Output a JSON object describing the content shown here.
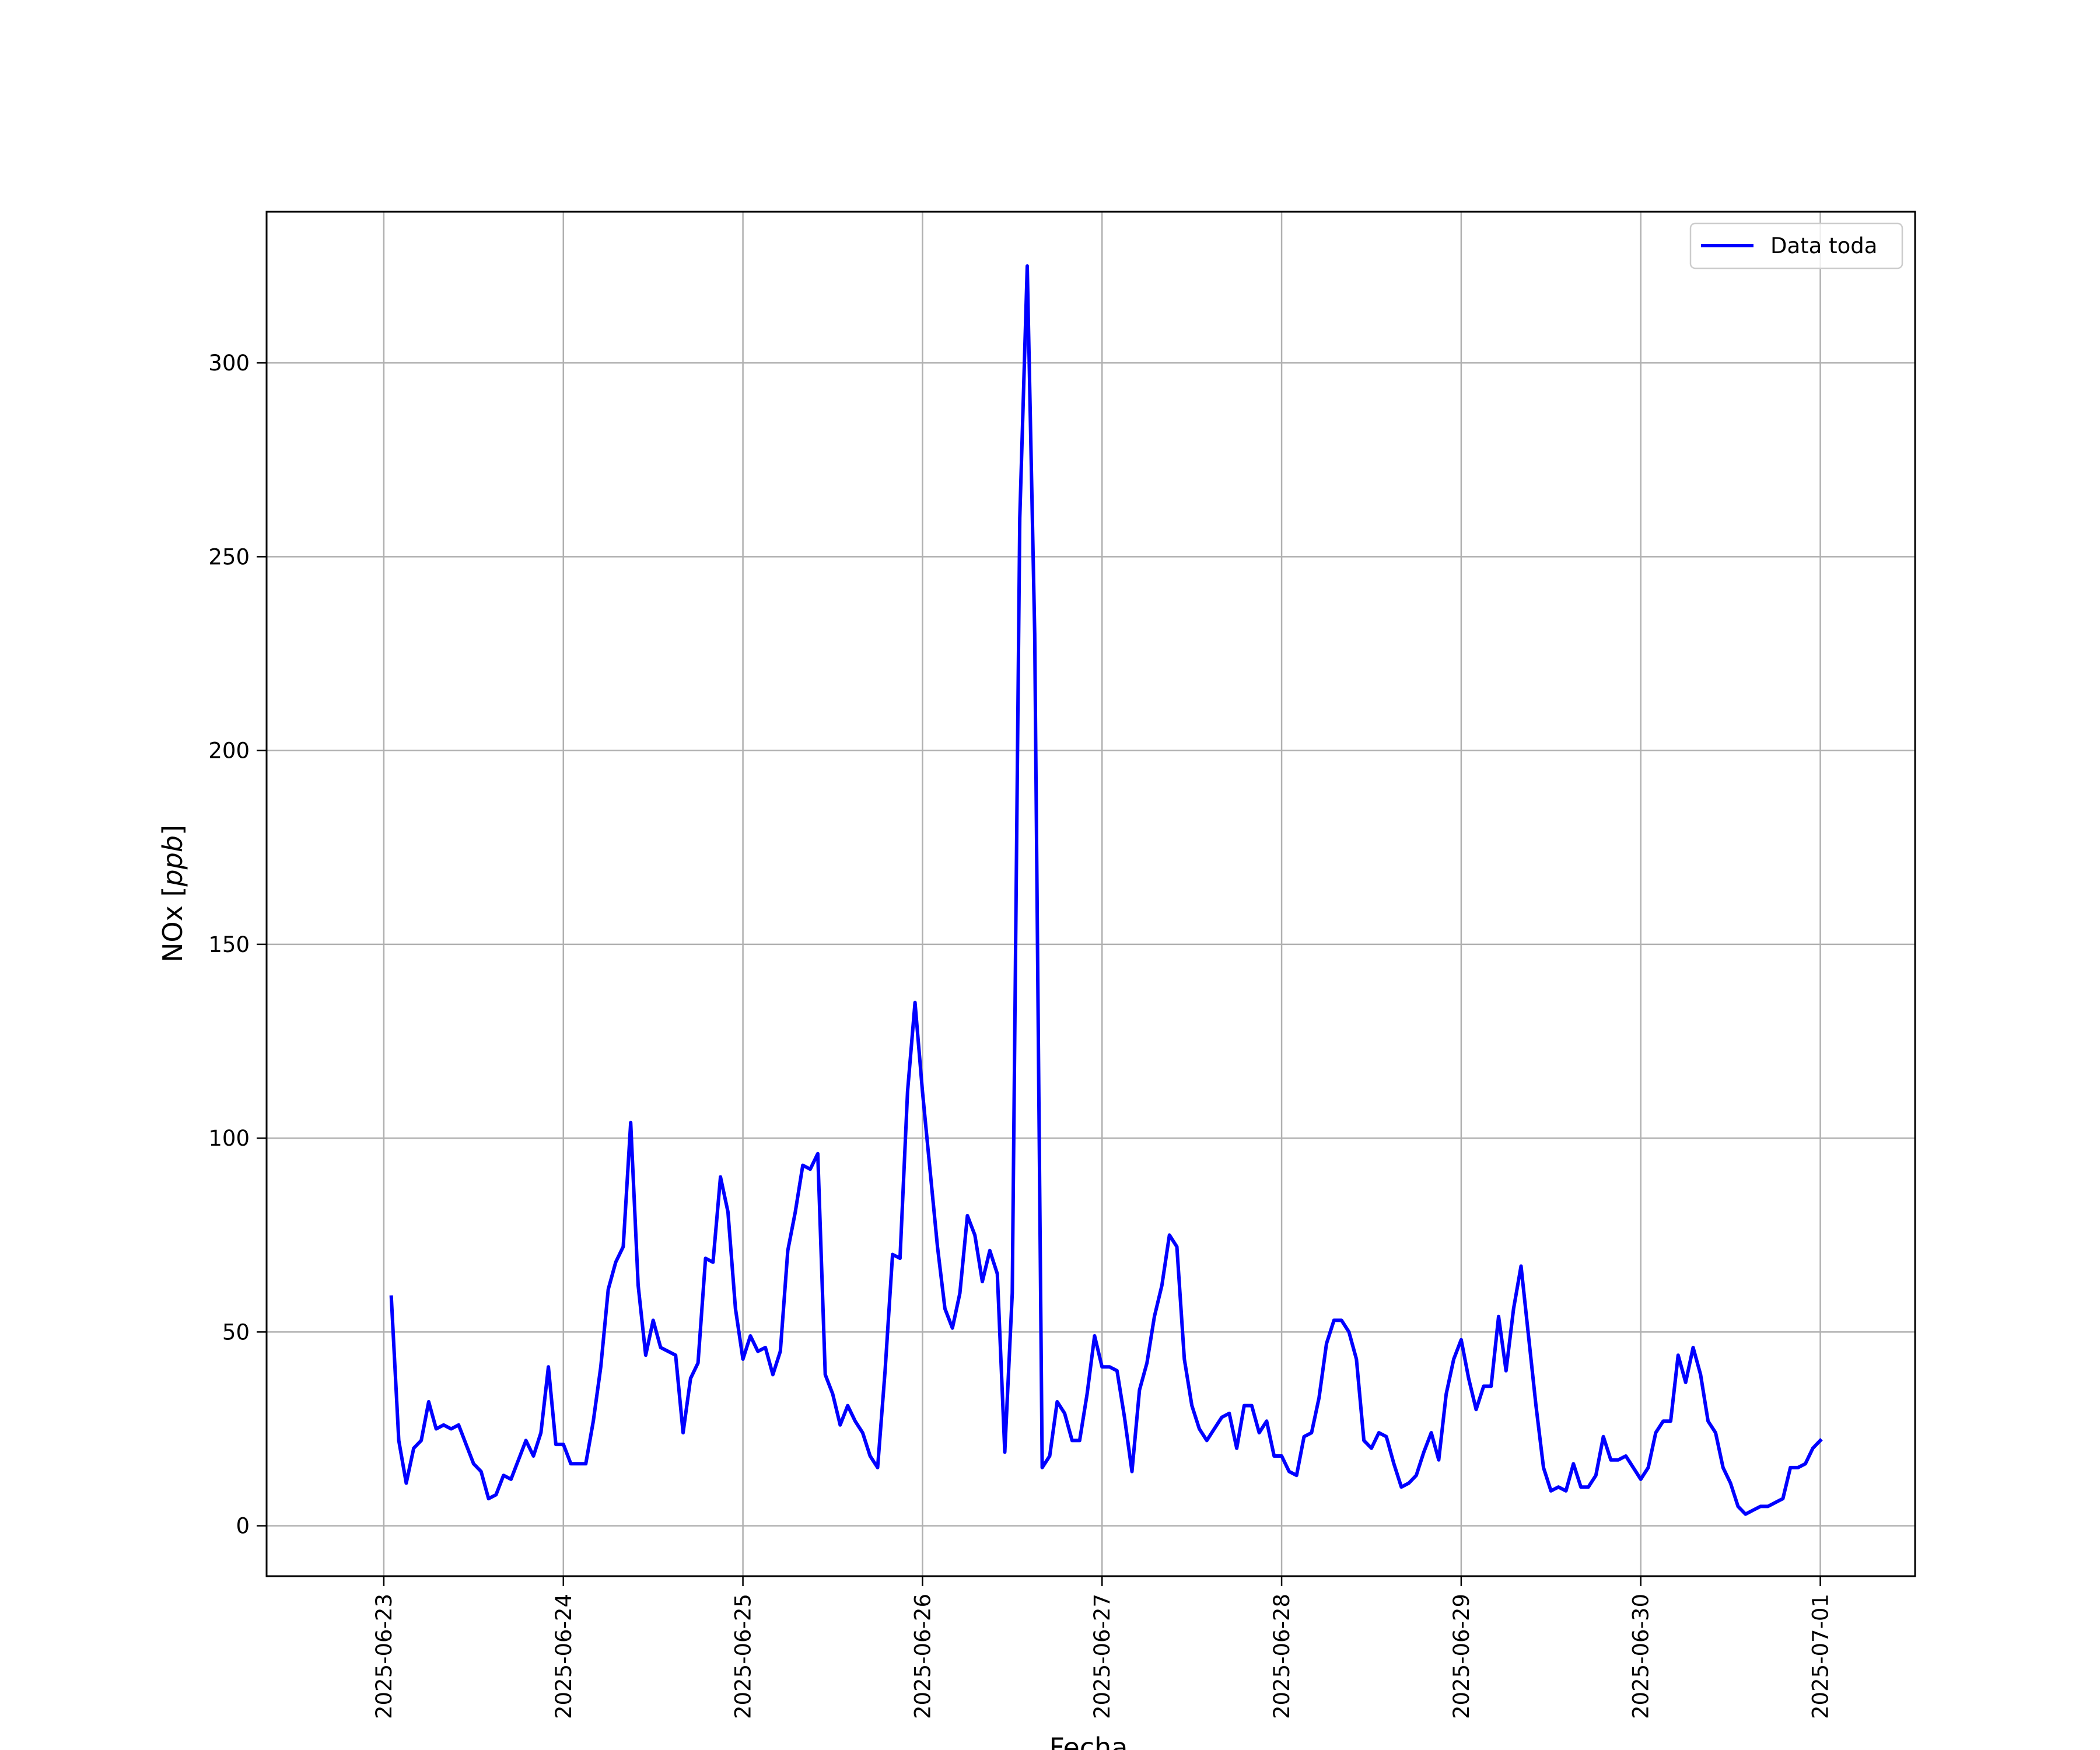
{
  "chart_data": {
    "type": "line",
    "xlabel": "Fecha",
    "ylabel": "NOx",
    "ylabel_unit": "ppb",
    "x_start": "2025-06-23T00:00",
    "x_step_hours": 1,
    "x_ticks": [
      "2025-06-23",
      "2025-06-24",
      "2025-06-25",
      "2025-06-26",
      "2025-06-27",
      "2025-06-28",
      "2025-06-29",
      "2025-06-30",
      "2025-07-01"
    ],
    "y_ticks": [
      0,
      50,
      100,
      150,
      200,
      250,
      300
    ],
    "xlim": [
      "2025-06-22T08:20",
      "2025-07-01T12:40"
    ],
    "ylim": [
      -13,
      339
    ],
    "grid": true,
    "legend_position": "upper right",
    "series_color": "#0000ff",
    "series": [
      {
        "name": "Data toda",
        "start": "2025-06-23T01:00",
        "values": [
          59,
          22,
          11,
          20,
          22,
          32,
          25,
          26,
          25,
          26,
          21,
          16,
          14,
          7,
          8,
          13,
          12,
          17,
          22,
          18,
          24,
          41,
          21,
          21,
          16,
          16,
          16,
          27,
          41,
          61,
          68,
          72,
          104,
          62,
          44,
          53,
          46,
          45,
          44,
          24,
          38,
          42,
          69,
          68,
          90,
          81,
          56,
          43,
          49,
          45,
          46,
          39,
          45,
          71,
          81,
          93,
          92,
          96,
          39,
          34,
          26,
          31,
          27,
          24,
          18,
          15,
          40,
          70,
          69,
          112,
          135,
          112,
          92,
          72,
          56,
          51,
          60,
          80,
          75,
          63,
          71,
          65,
          19,
          60,
          260,
          325,
          230,
          15,
          18,
          32,
          29,
          22,
          22,
          34,
          49,
          41,
          41,
          40,
          28,
          14,
          35,
          42,
          54,
          62,
          75,
          72,
          43,
          31,
          25,
          22,
          25,
          28,
          29,
          20,
          31,
          31,
          24,
          27,
          18,
          18,
          14,
          13,
          23,
          24,
          33,
          47,
          53,
          53,
          50,
          43,
          22,
          20,
          24,
          23,
          16,
          10,
          11,
          13,
          19,
          24,
          17,
          34,
          43,
          48,
          38,
          30,
          36,
          36,
          54,
          40,
          56,
          67,
          49,
          31,
          15,
          9,
          10,
          9,
          16,
          10,
          10,
          13,
          23,
          17,
          17,
          18,
          15,
          12,
          15,
          24,
          27,
          27,
          44,
          37,
          46,
          39,
          27,
          24,
          15,
          11,
          5,
          3,
          4,
          5,
          5,
          6,
          7,
          15,
          15,
          16,
          20,
          22
        ]
      }
    ]
  }
}
